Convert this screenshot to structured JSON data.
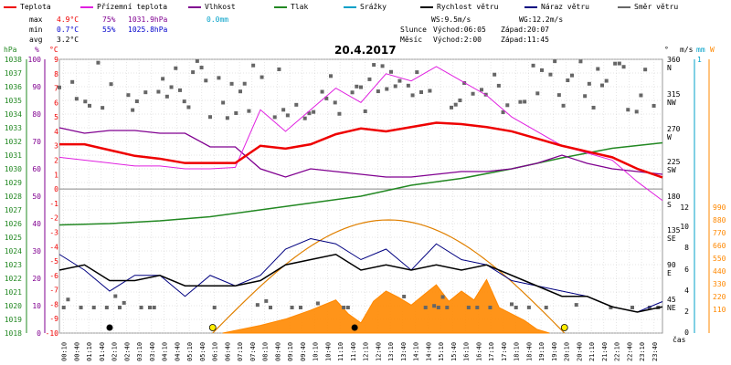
{
  "legend": [
    {
      "label": "Teplota",
      "color": "#ee0000"
    },
    {
      "label": "Přízemní teplota",
      "color": "#e020e0"
    },
    {
      "label": "Vlhkost",
      "color": "#800090"
    },
    {
      "label": "Tlak",
      "color": "#228822"
    },
    {
      "label": "Srážky",
      "color": "#00a0c8"
    },
    {
      "label": "Rychlost větru",
      "color": "#000000"
    },
    {
      "label": "Náraz větru",
      "color": "#000080"
    },
    {
      "label": "Směr větru",
      "color": "#666666"
    }
  ],
  "stats": {
    "max_label": "max",
    "max_temp": "4.9°C",
    "max_hum": "75%",
    "max_press": "1031.9hPa",
    "max_rain": "0.0mm",
    "min_label": "min",
    "min_temp": "0.7°C",
    "min_hum": "55%",
    "min_press": "1025.8hPa",
    "avg_label": "avg",
    "avg_temp": "3.2°C"
  },
  "wind_info": {
    "ws": "WS:9.5m/s",
    "wg": "WG:12.2m/s"
  },
  "sun_info": {
    "label": "Slunce",
    "rise": "Východ:06:05",
    "set": "Západ:20:07"
  },
  "moon_info": {
    "label": "Měsíc",
    "rise": "Východ:2:00",
    "set": "Západ:11:45"
  },
  "date": "20.4.2017",
  "x_axis_title": "čas",
  "colors": {
    "temp": "#ee0000",
    "ground": "#e020e0",
    "hum": "#800090",
    "press": "#228822",
    "rain": "#00a0c8",
    "wind": "#000000",
    "gust": "#000080",
    "dir": "#666666",
    "solar": "#ff8800",
    "sunline": "#e08000",
    "grid": "#cccccc",
    "axis_hpa": "#228822",
    "axis_pct": "#800090",
    "axis_c": "#ee0000"
  },
  "chart_data": {
    "type": "line",
    "title": "20.4.2017",
    "x_ticks": [
      "00:10",
      "00:40",
      "01:10",
      "01:40",
      "02:10",
      "02:40",
      "03:10",
      "03:40",
      "04:10",
      "04:40",
      "05:10",
      "05:40",
      "06:10",
      "06:40",
      "07:10",
      "07:40",
      "08:10",
      "08:40",
      "09:10",
      "09:40",
      "10:10",
      "10:40",
      "11:10",
      "11:40",
      "12:10",
      "12:40",
      "13:10",
      "13:40",
      "14:10",
      "14:40",
      "15:10",
      "15:40",
      "16:10",
      "16:40",
      "17:10",
      "17:40",
      "18:10",
      "18:40",
      "19:10",
      "19:40",
      "20:10",
      "20:40",
      "21:10",
      "21:40",
      "22:10",
      "22:40",
      "23:10",
      "23:40"
    ],
    "hpa_ticks": [
      "1038",
      "1037",
      "1036",
      "1035",
      "1034",
      "1033",
      "1032",
      "1031",
      "1030",
      "1029",
      "1028",
      "1027",
      "1026",
      "1025",
      "1024",
      "1023",
      "1022",
      "1021",
      "1020",
      "1019",
      "1018"
    ],
    "pct_ticks": [
      "100",
      "90",
      "80",
      "70",
      "60",
      "50",
      "40",
      "30",
      "20",
      "10",
      "0"
    ],
    "c_ticks": [
      "9",
      "8",
      "7",
      "6",
      "5",
      "4",
      "3",
      "2",
      "1",
      "0",
      "-1",
      "-2",
      "-3",
      "-4",
      "-5",
      "-6",
      "-7",
      "-8",
      "-9",
      "-10"
    ],
    "dir_ticks": [
      "360",
      "N",
      "315",
      "NW",
      "270",
      "W",
      "225",
      "SW",
      "180",
      "S",
      "135",
      "SE",
      "90",
      "E",
      "45",
      "NE"
    ],
    "ms_ticks": [
      "12",
      "10",
      "8",
      "6",
      "4",
      "2",
      "0"
    ],
    "mm_ticks": [
      "1"
    ],
    "w_ticks": [
      "990",
      "880",
      "770",
      "660",
      "550",
      "440",
      "330",
      "220",
      "110"
    ],
    "top_unit_labels": {
      "hpa": "hPa",
      "pct": "%",
      "c": "°C",
      "deg": "°",
      "ms": "m/s",
      "mm": "mm",
      "w": "W"
    },
    "temperature": {
      "name": "Teplota",
      "hours": [
        0,
        1,
        2,
        3,
        4,
        5,
        6,
        7,
        8,
        9,
        10,
        11,
        12,
        13,
        14,
        15,
        16,
        17,
        18,
        19,
        20,
        21,
        22,
        23,
        24
      ],
      "values": [
        3.1,
        3.1,
        2.7,
        2.3,
        2.1,
        1.8,
        1.8,
        1.8,
        3.0,
        2.8,
        3.1,
        3.8,
        4.2,
        4.0,
        4.3,
        4.6,
        4.5,
        4.3,
        4.0,
        3.5,
        3.0,
        2.6,
        2.2,
        1.4,
        0.8
      ]
    },
    "ground_temperature": {
      "name": "Přízemní teplota",
      "hours": [
        0,
        1,
        2,
        3,
        4,
        5,
        6,
        7,
        8,
        9,
        10,
        11,
        12,
        13,
        14,
        15,
        16,
        17,
        18,
        19,
        20,
        21,
        22,
        23,
        24
      ],
      "values": [
        2.2,
        2.0,
        1.8,
        1.6,
        1.6,
        1.4,
        1.4,
        1.5,
        5.5,
        4.0,
        5.5,
        7.0,
        6.0,
        8.0,
        7.5,
        8.5,
        7.5,
        6.5,
        5.0,
        4.0,
        3.0,
        2.5,
        2.0,
        0.5,
        -0.8
      ]
    },
    "humidity": {
      "name": "Vlhkost",
      "hours": [
        0,
        1,
        2,
        3,
        4,
        5,
        6,
        7,
        8,
        9,
        10,
        11,
        12,
        13,
        14,
        15,
        16,
        17,
        18,
        19,
        20,
        21,
        22,
        23,
        24
      ],
      "values": [
        75,
        73,
        74,
        74,
        73,
        73,
        68,
        68,
        60,
        57,
        60,
        59,
        58,
        57,
        57,
        58,
        59,
        59,
        60,
        62,
        65,
        62,
        60,
        59,
        58
      ]
    },
    "pressure": {
      "name": "Tlak",
      "hours": [
        0,
        2,
        4,
        6,
        8,
        10,
        12,
        14,
        16,
        18,
        20,
        22,
        24
      ],
      "values": [
        1025.9,
        1026.0,
        1026.2,
        1026.5,
        1027.0,
        1027.5,
        1028.0,
        1028.8,
        1029.3,
        1030.0,
        1030.8,
        1031.5,
        1031.9
      ]
    },
    "wind_speed": {
      "name": "Rychlost větru",
      "unit": "m/s",
      "hours": [
        0,
        1,
        2,
        3,
        4,
        5,
        6,
        7,
        8,
        9,
        10,
        11,
        12,
        13,
        14,
        15,
        16,
        17,
        18,
        19,
        20,
        21,
        22,
        23,
        24
      ],
      "values": [
        6.0,
        6.5,
        5.0,
        5.0,
        5.5,
        4.5,
        4.5,
        4.5,
        5.0,
        6.5,
        7.0,
        7.5,
        6.0,
        6.5,
        6.0,
        6.5,
        6.0,
        6.5,
        5.5,
        4.5,
        3.5,
        3.5,
        2.5,
        2.0,
        2.5
      ]
    },
    "wind_gust": {
      "name": "Náraz větru",
      "unit": "m/s",
      "hours": [
        0,
        1,
        2,
        3,
        4,
        5,
        6,
        7,
        8,
        9,
        10,
        11,
        12,
        13,
        14,
        15,
        16,
        17,
        18,
        19,
        20,
        21,
        22,
        23,
        24
      ],
      "values": [
        7.5,
        6.0,
        4.0,
        5.5,
        5.5,
        3.5,
        5.5,
        4.5,
        5.5,
        8.0,
        9.0,
        8.5,
        7.0,
        8.0,
        6.0,
        8.5,
        7.0,
        6.5,
        5.0,
        4.5,
        4.0,
        3.5,
        2.5,
        2.0,
        3.0
      ]
    },
    "solar": {
      "unit": "W",
      "hours": [
        6.5,
        7,
        8,
        9,
        10,
        11,
        11.5,
        12,
        12.5,
        13,
        13.5,
        14,
        14.5,
        15,
        15.5,
        16,
        16.5,
        17,
        17.5,
        18,
        18.5,
        19,
        19.5
      ],
      "values": [
        0,
        20,
        60,
        110,
        180,
        260,
        150,
        80,
        250,
        330,
        280,
        220,
        300,
        380,
        250,
        330,
        260,
        420,
        200,
        150,
        100,
        30,
        0
      ]
    }
  }
}
